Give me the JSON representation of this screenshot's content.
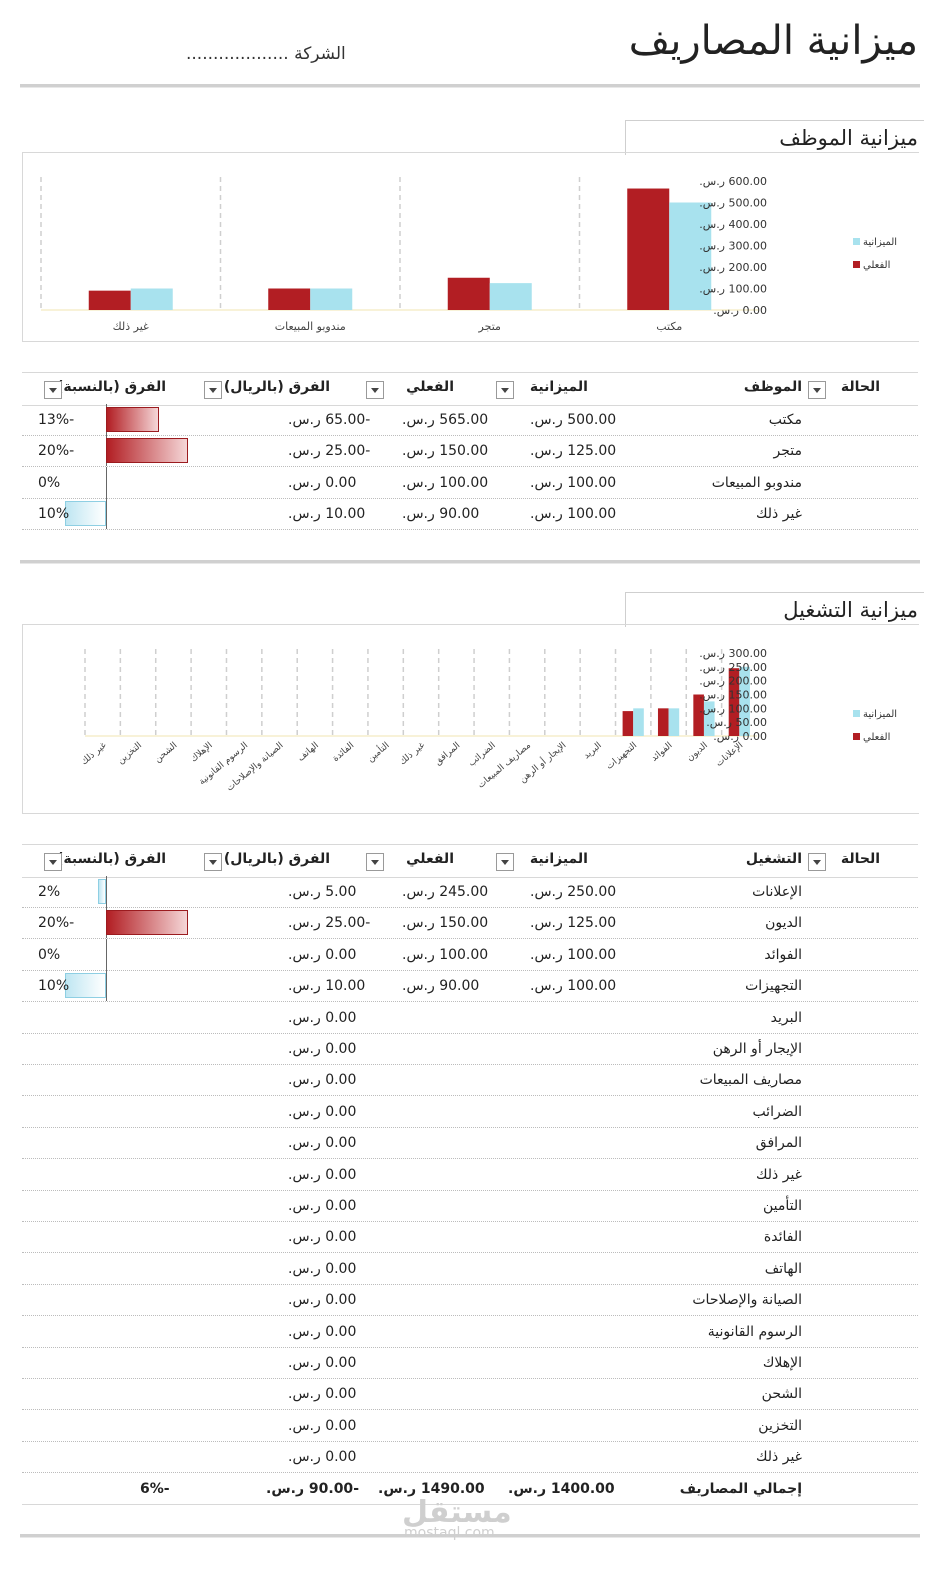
{
  "header": {
    "title": "ميزانية المصاريف",
    "company": "الشركة ..................."
  },
  "employee_section": {
    "title": "ميزانية الموظف"
  },
  "operating_section": {
    "title": "ميزانية التشغيل"
  },
  "chart_data": [
    {
      "type": "bar",
      "categories": [
        "مكتب",
        "متجر",
        "مندوبو المبيعات",
        "غير ذلك"
      ],
      "series": [
        {
          "name": "الفعلي",
          "values": [
            565,
            150,
            100,
            90
          ],
          "color": "#b21e23"
        },
        {
          "name": "الميزانية",
          "values": [
            500,
            125,
            100,
            100
          ],
          "color": "#a8e2ee"
        }
      ],
      "y_ticks": [
        "600.00 ر.س.",
        "500.00 ر.س.",
        "400.00 ر.س.",
        "300.00 ر.س.",
        "200.00 ر.س.",
        "100.00 ر.س.",
        "0.00 ر.س."
      ],
      "ylim": [
        0,
        600
      ],
      "legend_position": "right"
    },
    {
      "type": "bar",
      "categories": [
        "الإعلانات",
        "الديون",
        "الفوائد",
        "التجهيزات",
        "البريد",
        "الإيجار أو الرهن",
        "مصاريف المبيعات",
        "الضرائب",
        "المرافق",
        "غير ذلك",
        "التأمين",
        "الفائدة",
        "الهاتف",
        "الصيانة والإصلاحات",
        "الرسوم القانونية",
        "الإهلاك",
        "الشحن",
        "التخزين",
        "غير ذلك"
      ],
      "series": [
        {
          "name": "الفعلي",
          "values": [
            245,
            150,
            100,
            90,
            0,
            0,
            0,
            0,
            0,
            0,
            0,
            0,
            0,
            0,
            0,
            0,
            0,
            0,
            0
          ],
          "color": "#b21e23"
        },
        {
          "name": "الميزانية",
          "values": [
            250,
            125,
            100,
            100,
            0,
            0,
            0,
            0,
            0,
            0,
            0,
            0,
            0,
            0,
            0,
            0,
            0,
            0,
            0
          ],
          "color": "#a8e2ee"
        }
      ],
      "y_ticks": [
        "300.00 ر.س.",
        "250.00 ر.س.",
        "200.00 ر.س.",
        "150.00 ر.س.",
        "100.00 ر.س.",
        "50.00 ر.س.",
        "0.00 ر.س."
      ],
      "ylim": [
        0,
        300
      ],
      "legend_position": "right"
    }
  ],
  "employee_table": {
    "headers": {
      "status": "الحالة",
      "item": "الموظف",
      "budget": "الميزانية",
      "actual": "الفعلي",
      "diff": "الفرق (بالريال)",
      "pct": "الفرق (بالنسبة)"
    },
    "rows": [
      {
        "item": "مكتب",
        "budget": "500.00 ر.س.",
        "actual": "565.00 ر.س.",
        "diff": "-65.00 ر.س.",
        "pct": "-13%",
        "pct_value": -0.13
      },
      {
        "item": "متجر",
        "budget": "125.00 ر.س.",
        "actual": "150.00 ر.س.",
        "diff": "-25.00 ر.س.",
        "pct": "-20%",
        "pct_value": -0.2
      },
      {
        "item": "مندوبو المبيعات",
        "budget": "100.00 ر.س.",
        "actual": "100.00 ر.س.",
        "diff": "0.00 ر.س.",
        "pct": "0%",
        "pct_value": 0
      },
      {
        "item": "غير ذلك",
        "budget": "100.00 ر.س.",
        "actual": "90.00 ر.س.",
        "diff": "10.00 ر.س.",
        "pct": "10%",
        "pct_value": 0.1
      }
    ]
  },
  "operating_table": {
    "headers": {
      "status": "الحالة",
      "item": "التشغيل",
      "budget": "الميزانية",
      "actual": "الفعلي",
      "diff": "الفرق (بالريال)",
      "pct": "الفرق (بالنسبة)"
    },
    "rows": [
      {
        "item": "الإعلانات",
        "budget": "250.00 ر.س.",
        "actual": "245.00 ر.س.",
        "diff": "5.00 ر.س.",
        "pct": "2%",
        "pct_value": 0.02
      },
      {
        "item": "الديون",
        "budget": "125.00 ر.س.",
        "actual": "150.00 ر.س.",
        "diff": "-25.00 ر.س.",
        "pct": "-20%",
        "pct_value": -0.2
      },
      {
        "item": "الفوائد",
        "budget": "100.00 ر.س.",
        "actual": "100.00 ر.س.",
        "diff": "0.00 ر.س.",
        "pct": "0%",
        "pct_value": 0
      },
      {
        "item": "التجهيزات",
        "budget": "100.00 ر.س.",
        "actual": "90.00 ر.س.",
        "diff": "10.00 ر.س.",
        "pct": "10%",
        "pct_value": 0.1
      },
      {
        "item": "البريد",
        "budget": "",
        "actual": "",
        "diff": "0.00 ر.س.",
        "pct": ""
      },
      {
        "item": "الإيجار أو الرهن",
        "budget": "",
        "actual": "",
        "diff": "0.00 ر.س.",
        "pct": ""
      },
      {
        "item": "مصاريف المبيعات",
        "budget": "",
        "actual": "",
        "diff": "0.00 ر.س.",
        "pct": ""
      },
      {
        "item": "الضرائب",
        "budget": "",
        "actual": "",
        "diff": "0.00 ر.س.",
        "pct": ""
      },
      {
        "item": "المرافق",
        "budget": "",
        "actual": "",
        "diff": "0.00 ر.س.",
        "pct": ""
      },
      {
        "item": "غير ذلك",
        "budget": "",
        "actual": "",
        "diff": "0.00 ر.س.",
        "pct": ""
      },
      {
        "item": "التأمين",
        "budget": "",
        "actual": "",
        "diff": "0.00 ر.س.",
        "pct": ""
      },
      {
        "item": "الفائدة",
        "budget": "",
        "actual": "",
        "diff": "0.00 ر.س.",
        "pct": ""
      },
      {
        "item": "الهاتف",
        "budget": "",
        "actual": "",
        "diff": "0.00 ر.س.",
        "pct": ""
      },
      {
        "item": "الصيانة والإصلاحات",
        "budget": "",
        "actual": "",
        "diff": "0.00 ر.س.",
        "pct": ""
      },
      {
        "item": "الرسوم القانونية",
        "budget": "",
        "actual": "",
        "diff": "0.00 ر.س.",
        "pct": ""
      },
      {
        "item": "الإهلاك",
        "budget": "",
        "actual": "",
        "diff": "0.00 ر.س.",
        "pct": ""
      },
      {
        "item": "الشحن",
        "budget": "",
        "actual": "",
        "diff": "0.00 ر.س.",
        "pct": ""
      },
      {
        "item": "التخزين",
        "budget": "",
        "actual": "",
        "diff": "0.00 ر.س.",
        "pct": ""
      },
      {
        "item": "غير ذلك",
        "budget": "",
        "actual": "",
        "diff": "0.00 ر.س.",
        "pct": ""
      }
    ],
    "total": {
      "label": "إجمالي المصاريف",
      "budget": "1400.00 ر.س.",
      "actual": "1490.00 ر.س.",
      "diff": "-90.00 ر.س.",
      "pct": "-6%"
    }
  },
  "watermark": {
    "main": "مستقل",
    "sub": "mostaql.com"
  }
}
